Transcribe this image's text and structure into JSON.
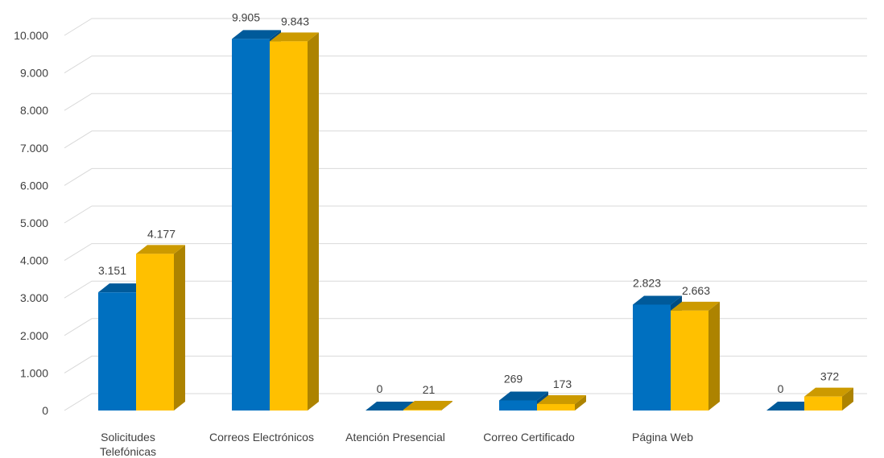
{
  "chart_data": {
    "type": "bar",
    "style": "3d-clustered-column",
    "categories": [
      [
        "Solicitudes",
        "Telefónicas"
      ],
      [
        "Correos Electrónicos"
      ],
      [
        "Atención Presencial"
      ],
      [
        "Correo Certificado"
      ],
      [
        "Página Web"
      ],
      [
        ""
      ]
    ],
    "series": [
      {
        "color": "#0070C0",
        "values": [
          3151,
          9905,
          0,
          269,
          2823,
          0
        ]
      },
      {
        "color": "#FFC000",
        "values": [
          4177,
          9843,
          21,
          173,
          2663,
          372
        ]
      }
    ],
    "data_labels": [
      [
        "3.151",
        "9.905",
        "0",
        "269",
        "2.823",
        "0"
      ],
      [
        "4.177",
        "9.843",
        "21",
        "173",
        "2.663",
        "372"
      ]
    ],
    "y_ticks": [
      0,
      1000,
      2000,
      3000,
      4000,
      5000,
      6000,
      7000,
      8000,
      9000,
      10000
    ],
    "y_tick_labels": [
      "0",
      "1.000",
      "2.000",
      "3.000",
      "4.000",
      "5.000",
      "6.000",
      "7.000",
      "8.000",
      "9.000",
      "10.000"
    ],
    "ylim": [
      0,
      10000
    ],
    "grid": true,
    "legend": "none"
  }
}
